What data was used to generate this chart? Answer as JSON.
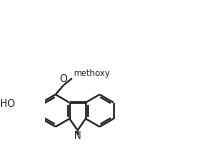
{
  "bg_color": "#ffffff",
  "line_color": "#222222",
  "lw": 1.3,
  "figsize": [
    2.08,
    1.55
  ],
  "dpi": 100,
  "font_size": 7.0,
  "methoxy_text": "methoxy",
  "O_label": "O",
  "HO_label": "HO",
  "N_label": "N",
  "xlim": [
    -1.5,
    8.5
  ],
  "ylim": [
    -2.0,
    5.5
  ]
}
